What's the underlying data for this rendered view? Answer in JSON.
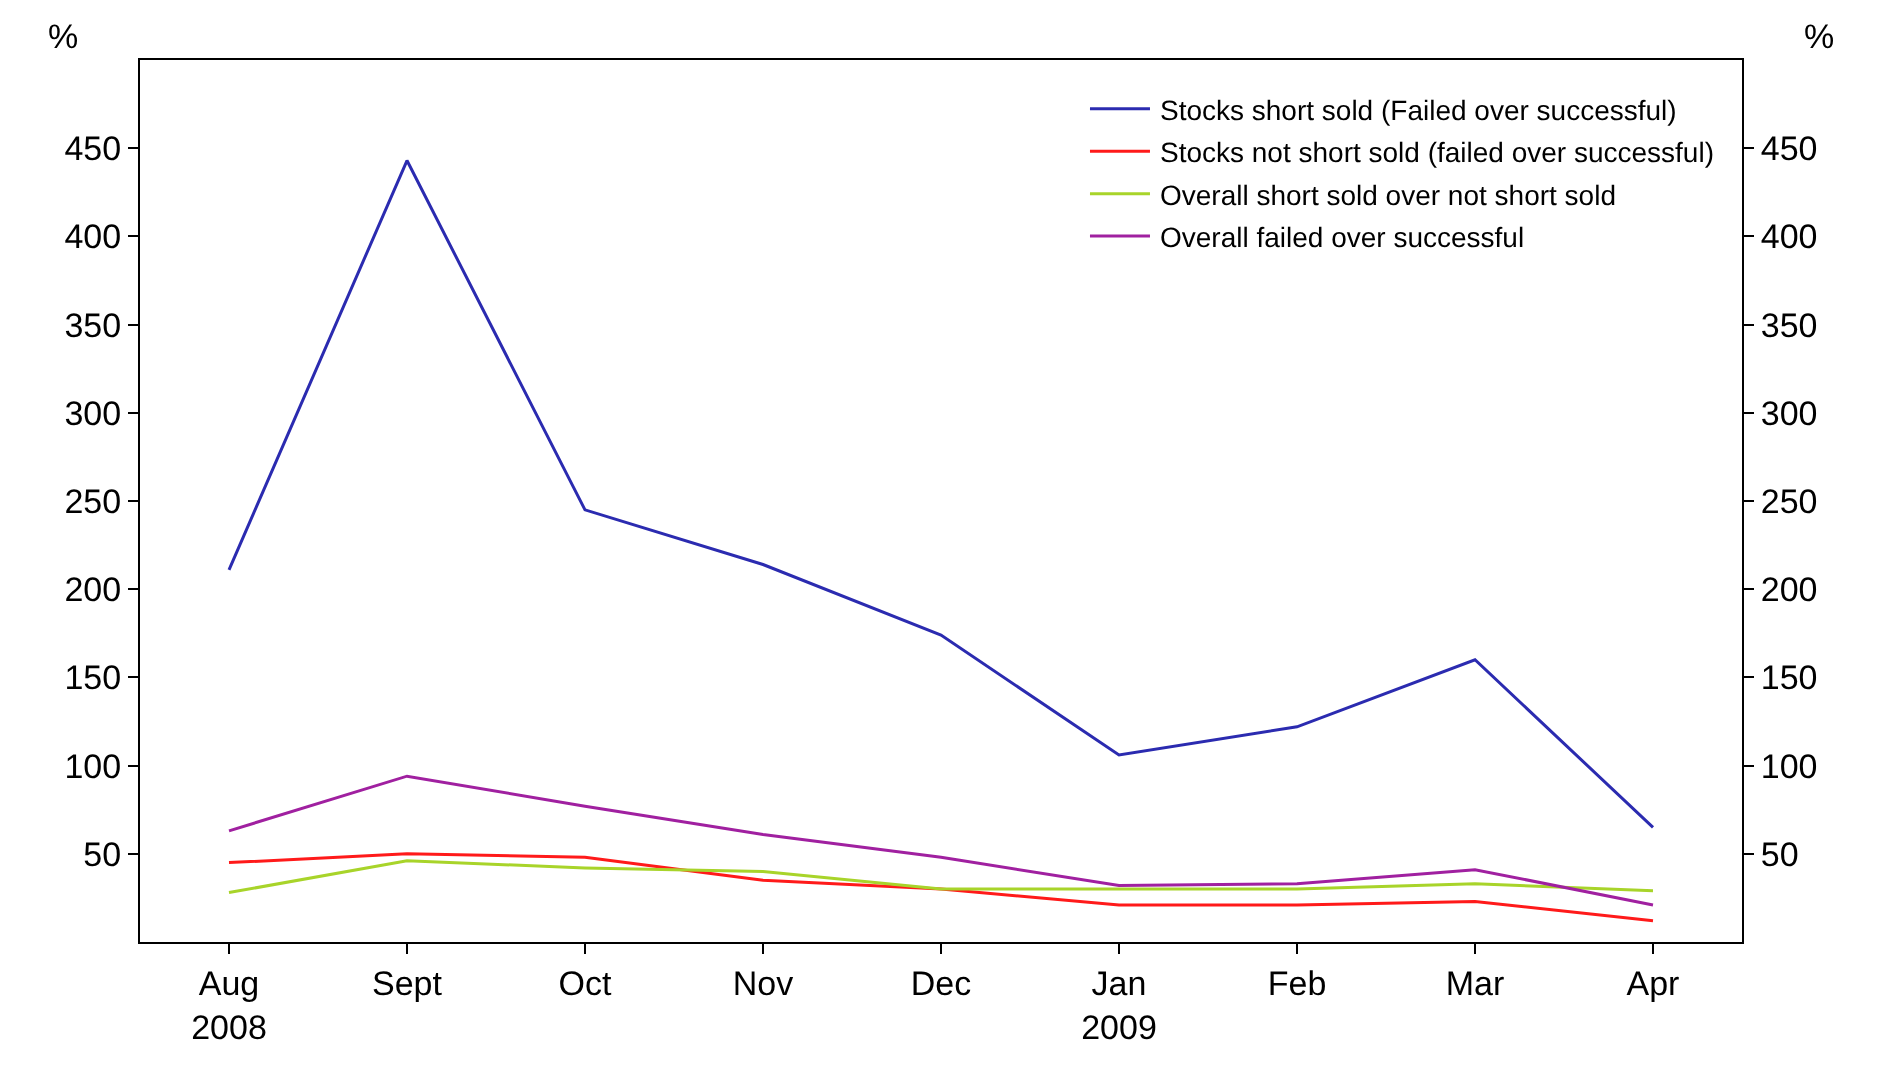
{
  "chart_data": {
    "type": "line",
    "categories": [
      "Aug\n2008",
      "Sept",
      "Oct",
      "Nov",
      "Dec",
      "Jan\n2009",
      "Feb",
      "Mar",
      "Apr"
    ],
    "series": [
      {
        "name": "Stocks short sold (Failed over successful)",
        "color": "#2b2bb0",
        "values": [
          211,
          443,
          245,
          214,
          174,
          106,
          122,
          160,
          65
        ]
      },
      {
        "name": "Stocks not short sold (failed over successful)",
        "color": "#ff1a1a",
        "values": [
          45,
          50,
          48,
          35,
          30,
          21,
          21,
          23,
          12
        ]
      },
      {
        "name": "Overall short sold over not short sold",
        "color": "#a8d42a",
        "values": [
          28,
          46,
          42,
          40,
          30,
          30,
          30,
          33,
          29
        ]
      },
      {
        "name": "Overall failed over successful",
        "color": "#a020a0",
        "values": [
          63,
          94,
          77,
          61,
          48,
          32,
          33,
          41,
          21
        ]
      }
    ],
    "ylabel": "%",
    "y2label": "%",
    "ylim": [
      0,
      500
    ],
    "yticks": [
      50,
      100,
      150,
      200,
      250,
      300,
      350,
      400,
      450
    ],
    "y2lim": [
      0,
      500
    ],
    "y2ticks": [
      50,
      100,
      150,
      200,
      250,
      300,
      350,
      400,
      450
    ],
    "legend": "top right",
    "marker": "none",
    "line_style": "solid"
  }
}
